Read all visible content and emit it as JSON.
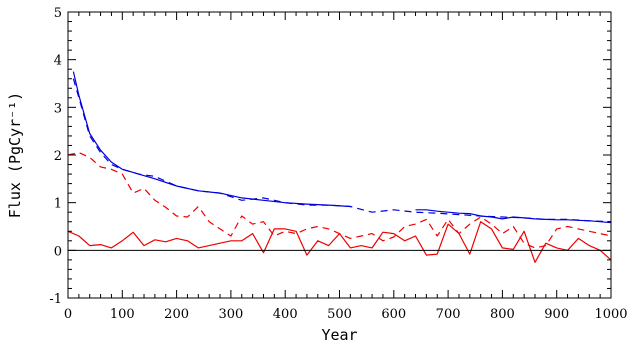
{
  "chart_data": {
    "type": "line",
    "xlabel": "Year",
    "ylabel": "Flux (PgCyr⁻¹)",
    "xlim": [
      0,
      1000
    ],
    "ylim": [
      -1,
      5
    ],
    "x_ticks": [
      0,
      100,
      200,
      300,
      400,
      500,
      600,
      700,
      800,
      900,
      1000
    ],
    "y_ticks": [
      -1,
      0,
      1,
      2,
      3,
      4,
      5
    ],
    "zero_line": 0,
    "grid": false,
    "colors": {
      "blue": "#0000dd",
      "red": "#ee0000",
      "axis": "#000000"
    },
    "series": [
      {
        "style": "solid",
        "color": "#0000dd",
        "x": [
          10,
          20,
          40,
          60,
          80,
          100,
          130,
          160,
          200,
          240,
          280,
          320,
          360,
          400,
          440,
          480,
          520
        ],
        "y": [
          3.75,
          3.25,
          2.45,
          2.1,
          1.85,
          1.7,
          1.6,
          1.5,
          1.35,
          1.25,
          1.2,
          1.1,
          1.05,
          1.0,
          0.97,
          0.95,
          0.92
        ]
      },
      {
        "style": "dashed",
        "color": "#0000dd",
        "x": [
          10,
          20,
          40,
          60,
          80,
          100,
          130,
          160,
          200,
          240,
          280,
          320,
          360,
          400,
          440,
          480,
          520,
          560,
          600,
          640,
          680,
          720,
          760,
          800,
          840,
          880,
          920,
          960,
          1000
        ],
        "y": [
          3.6,
          3.2,
          2.4,
          2.05,
          1.8,
          1.7,
          1.6,
          1.55,
          1.35,
          1.25,
          1.2,
          1.05,
          1.1,
          1.0,
          0.95,
          0.95,
          0.92,
          0.8,
          0.85,
          0.8,
          0.78,
          0.75,
          0.72,
          0.7,
          0.68,
          0.65,
          0.65,
          0.62,
          0.6
        ]
      },
      {
        "style": "solid",
        "color": "#0000dd",
        "x": [
          640,
          660,
          680,
          700,
          720,
          740,
          760,
          780,
          800,
          820,
          840,
          860,
          880,
          900,
          920,
          940,
          960,
          980,
          1000
        ],
        "y": [
          0.85,
          0.85,
          0.82,
          0.8,
          0.78,
          0.77,
          0.72,
          0.7,
          0.66,
          0.7,
          0.68,
          0.66,
          0.65,
          0.64,
          0.64,
          0.63,
          0.62,
          0.6,
          0.58
        ]
      },
      {
        "style": "dashed",
        "color": "#ee0000",
        "x": [
          0,
          20,
          40,
          60,
          80,
          100,
          120,
          140,
          160,
          180,
          200,
          220,
          240,
          260,
          280,
          300,
          320,
          340,
          360,
          380,
          400,
          420,
          440,
          460,
          480,
          500,
          520,
          540,
          560,
          580,
          600,
          620,
          640,
          660,
          680,
          700,
          720,
          740,
          760,
          780,
          800,
          820,
          840,
          860,
          880,
          900,
          920,
          940,
          960,
          980,
          1000
        ],
        "y": [
          2.0,
          2.05,
          1.95,
          1.75,
          1.7,
          1.6,
          1.2,
          1.3,
          1.05,
          0.9,
          0.72,
          0.7,
          0.92,
          0.6,
          0.45,
          0.3,
          0.72,
          0.55,
          0.6,
          0.3,
          0.4,
          0.35,
          0.45,
          0.5,
          0.45,
          0.35,
          0.25,
          0.3,
          0.35,
          0.2,
          0.28,
          0.5,
          0.55,
          0.65,
          0.3,
          0.65,
          0.35,
          0.55,
          0.7,
          0.55,
          0.35,
          0.5,
          0.15,
          0.05,
          0.1,
          0.45,
          0.5,
          0.45,
          0.4,
          0.35,
          0.3
        ]
      },
      {
        "style": "solid",
        "color": "#ee0000",
        "x": [
          0,
          20,
          40,
          60,
          80,
          100,
          120,
          140,
          160,
          180,
          200,
          220,
          240,
          260,
          280,
          300,
          320,
          340,
          360,
          380,
          400,
          420,
          440,
          460,
          480,
          500,
          520,
          540,
          560,
          580,
          600,
          620,
          640,
          660,
          680,
          700,
          720,
          740,
          760,
          780,
          800,
          820,
          840,
          860,
          880,
          900,
          920,
          940,
          960,
          980,
          1000
        ],
        "y": [
          0.4,
          0.3,
          0.1,
          0.12,
          0.05,
          0.2,
          0.38,
          0.1,
          0.22,
          0.18,
          0.25,
          0.2,
          0.05,
          0.1,
          0.15,
          0.2,
          0.2,
          0.35,
          -0.05,
          0.45,
          0.45,
          0.4,
          -0.1,
          0.2,
          0.1,
          0.35,
          0.05,
          0.1,
          0.05,
          0.38,
          0.35,
          0.2,
          0.3,
          -0.1,
          -0.08,
          0.55,
          0.35,
          -0.08,
          0.6,
          0.45,
          0.05,
          0.02,
          0.4,
          -0.25,
          0.15,
          0.05,
          0.0,
          0.25,
          0.1,
          0.0,
          -0.2
        ]
      }
    ]
  }
}
